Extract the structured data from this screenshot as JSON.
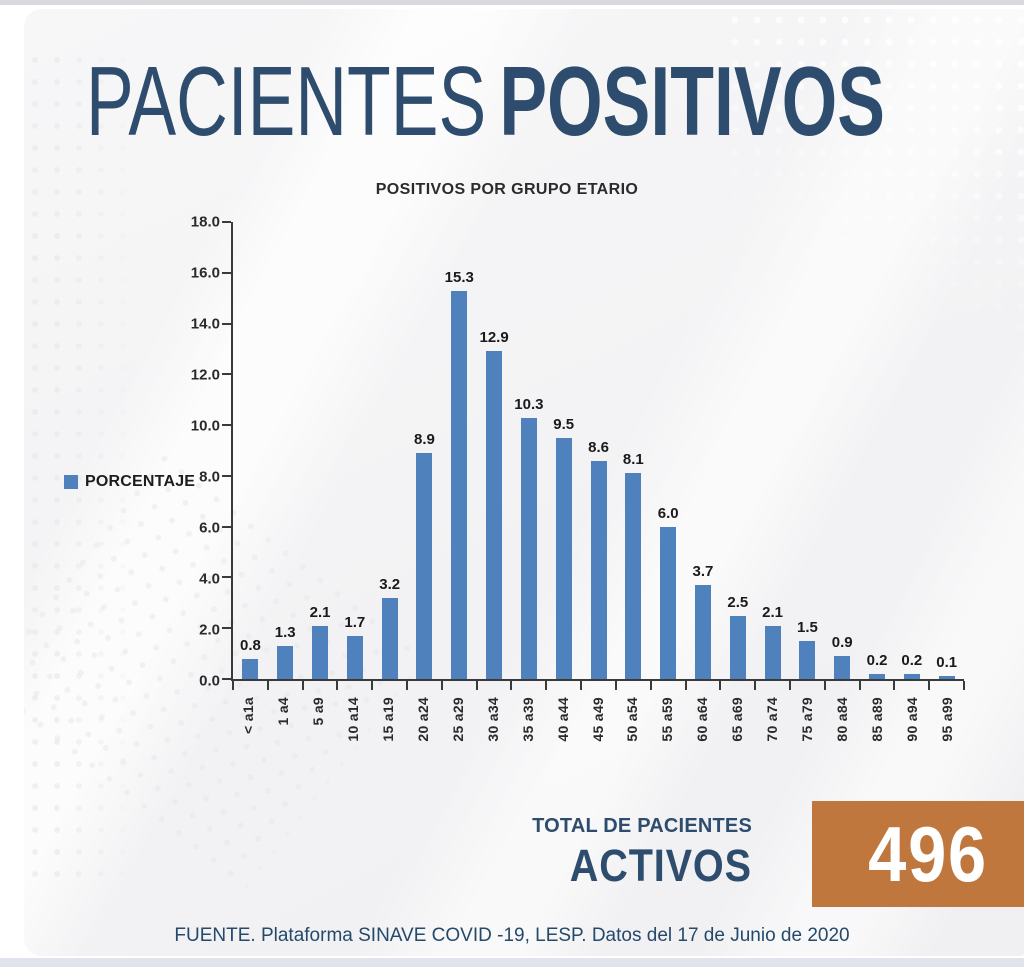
{
  "header": {
    "title_regular": "PACIENTES",
    "title_bold": "POSITIVOS"
  },
  "chart_data": {
    "type": "bar",
    "title": "POSITIVOS POR GRUPO ETARIO",
    "legend_label": "PORCENTAJE",
    "legend_position": "left",
    "categories": [
      "< a1a",
      "1 a4",
      "5 a9",
      "10 a14",
      "15 a19",
      "20 a24",
      "25 a29",
      "30 a34",
      "35 a39",
      "40 a44",
      "45 a49",
      "50 a54",
      "55 a59",
      "60 a64",
      "65 a69",
      "70 a74",
      "75 a79",
      "80 a84",
      "85 a89",
      "90 a94",
      "95 a99"
    ],
    "values": [
      0.8,
      1.3,
      2.1,
      1.7,
      3.2,
      8.9,
      15.3,
      12.9,
      10.3,
      9.5,
      8.6,
      8.1,
      6.0,
      3.7,
      2.5,
      2.1,
      1.5,
      0.9,
      0.2,
      0.2,
      0.1
    ],
    "xlabel": "",
    "ylabel": "",
    "ylim": [
      0,
      18
    ],
    "y_ticks": [
      0,
      2,
      4,
      6,
      8,
      10,
      12,
      14,
      16,
      18
    ],
    "grid": false,
    "value_labels": true,
    "bar_color": "#4F81BD"
  },
  "totals": {
    "label_line1": "TOTAL DE PACIENTES",
    "label_line2": "ACTIVOS",
    "value": "496",
    "box_color": "#C0773E"
  },
  "footer": {
    "source": "FUENTE. Plataforma SINAVE COVID -19, LESP. Datos del 17 de Junio de 2020"
  },
  "colors": {
    "title_navy": "#2E4D6E",
    "bar_blue": "#4F81BD",
    "box_orange": "#C0773E",
    "axis_dark": "#3A3A3A",
    "footer_navy": "#24496B"
  }
}
